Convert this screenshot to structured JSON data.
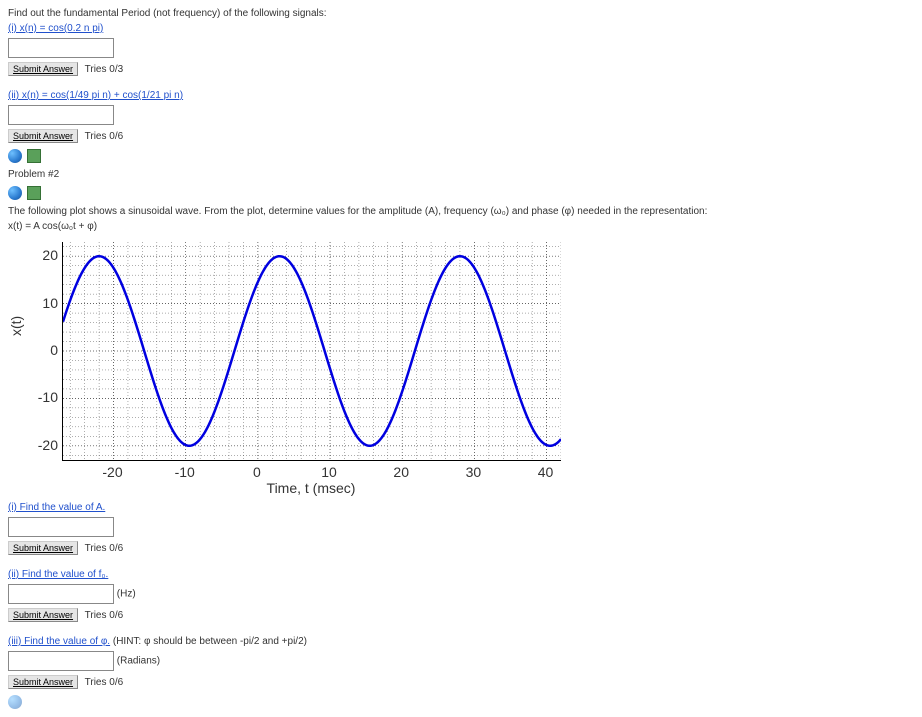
{
  "intro": "Find out the fundamental Period (not frequency) of the following signals:",
  "q1": {
    "label": "(i) x(n) = cos(0.2 n pi)",
    "submit": "Submit Answer",
    "tries": "Tries 0/3"
  },
  "q2": {
    "label": "(ii) x(n) = cos(1/49 pi n) + cos(1/21 pi n)",
    "submit": "Submit Answer",
    "tries": "Tries 0/6"
  },
  "problem2_heading": "Problem #2",
  "problem2_text": "The following plot shows a sinusoidal wave. From the plot, determine values for the amplitude (A), frequency (ω₀) and phase (φ) needed in the representation:",
  "eqn": "x(t) = A cos(ω₀t + φ)",
  "plot": {
    "ylabel": "x(t)",
    "xlabel": "Time, t (msec)",
    "ylim": [
      -23,
      23
    ],
    "xlim": [
      -27,
      42
    ],
    "yticks": [
      -20,
      -10,
      0,
      10,
      20
    ],
    "xticks": [
      -20,
      -10,
      0,
      10,
      20,
      30,
      40
    ],
    "xminor_step": 2,
    "yminor_step": 2,
    "major_grid_color": "#333333",
    "minor_grid_color": "#333333",
    "wave_color": "#0000e0",
    "wave_width": 2.5,
    "background": "#ffffff",
    "wave": {
      "A": 20,
      "period_ms": 25,
      "t_peak_ms": -22
    }
  },
  "qA": {
    "label": "(i) Find the value of A.",
    "submit": "Submit Answer",
    "tries": "Tries 0/6"
  },
  "qF": {
    "label": "(ii) Find the value of f₀.",
    "unit": "(Hz)",
    "submit": "Submit Answer",
    "tries": "Tries 0/6"
  },
  "qPhi": {
    "label": "(iii) Find the value of φ.",
    "hint": "(HINT: φ should be between -pi/2 and +pi/2)",
    "unit": "(Radians)",
    "submit": "Submit Answer",
    "tries": "Tries 0/6"
  }
}
